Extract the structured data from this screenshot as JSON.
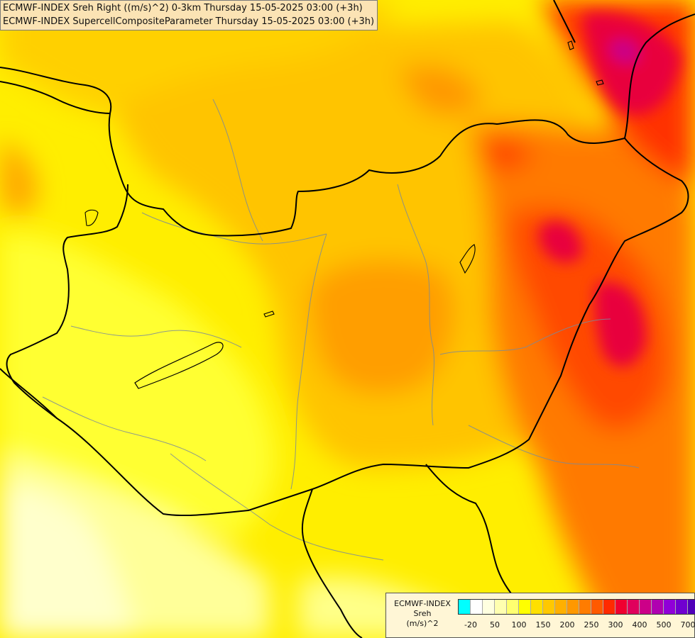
{
  "titles": {
    "line1": "ECMWF-INDEX Sreh Right ((m/s)^2) 0-3km Thursday 15-05-2025 03:00 (+3h)",
    "line2": "ECMWF-INDEX SupercellCompositeParameter Thursday 15-05-2025 03:00 (+3h)"
  },
  "legend": {
    "line1": "ECMWF-INDEX",
    "line2": "Sreh",
    "line3": "(m/s)^2",
    "colors": [
      "#00ffff",
      "#ffffff",
      "#ffffe0",
      "#ffffb0",
      "#ffff70",
      "#ffff00",
      "#ffe000",
      "#ffc800",
      "#ffb000",
      "#ff9800",
      "#ff7c00",
      "#ff5a00",
      "#ff2a00",
      "#f00030",
      "#e0005c",
      "#cc0088",
      "#b000b0",
      "#9000d8",
      "#7000d0",
      "#5000b8",
      "#2a0098"
    ],
    "ticks": [
      "-20",
      "50",
      "100",
      "150",
      "200",
      "250",
      "300",
      "400",
      "500",
      "700"
    ]
  }
}
